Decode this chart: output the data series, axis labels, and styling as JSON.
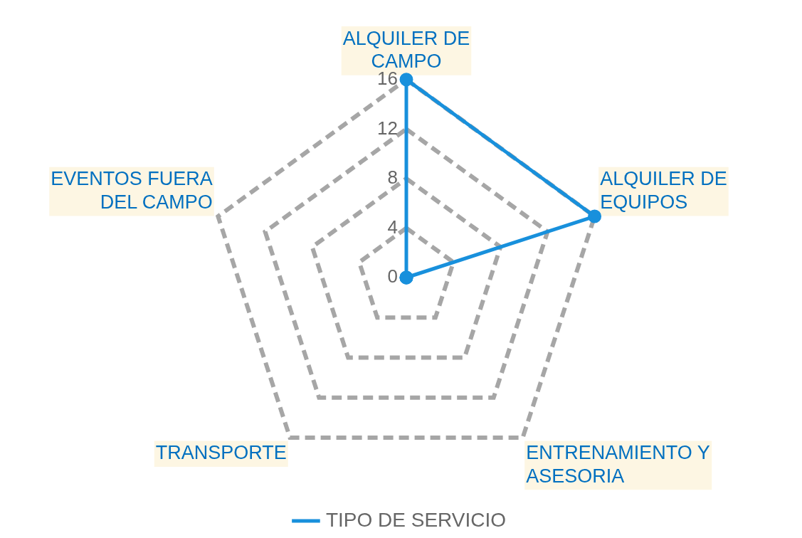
{
  "chart_data": {
    "type": "radar",
    "categories": [
      "ALQUILER DE CAMPO",
      "ALQUILER DE EQUIPOS",
      "ENTRENAMIENTO Y ASESORIA",
      "TRANSPORTE",
      "EVENTOS FUERA DEL CAMPO"
    ],
    "series": [
      {
        "name": "TIPO DE SERVICIO",
        "color": "#1890dc",
        "values": [
          16,
          16,
          0,
          0,
          0
        ]
      }
    ],
    "ylim": [
      0,
      16
    ],
    "yticks": [
      0,
      4,
      8,
      12,
      16
    ],
    "grid": true,
    "legend": "bottom",
    "marker": "circle",
    "line_style": "solid"
  }
}
